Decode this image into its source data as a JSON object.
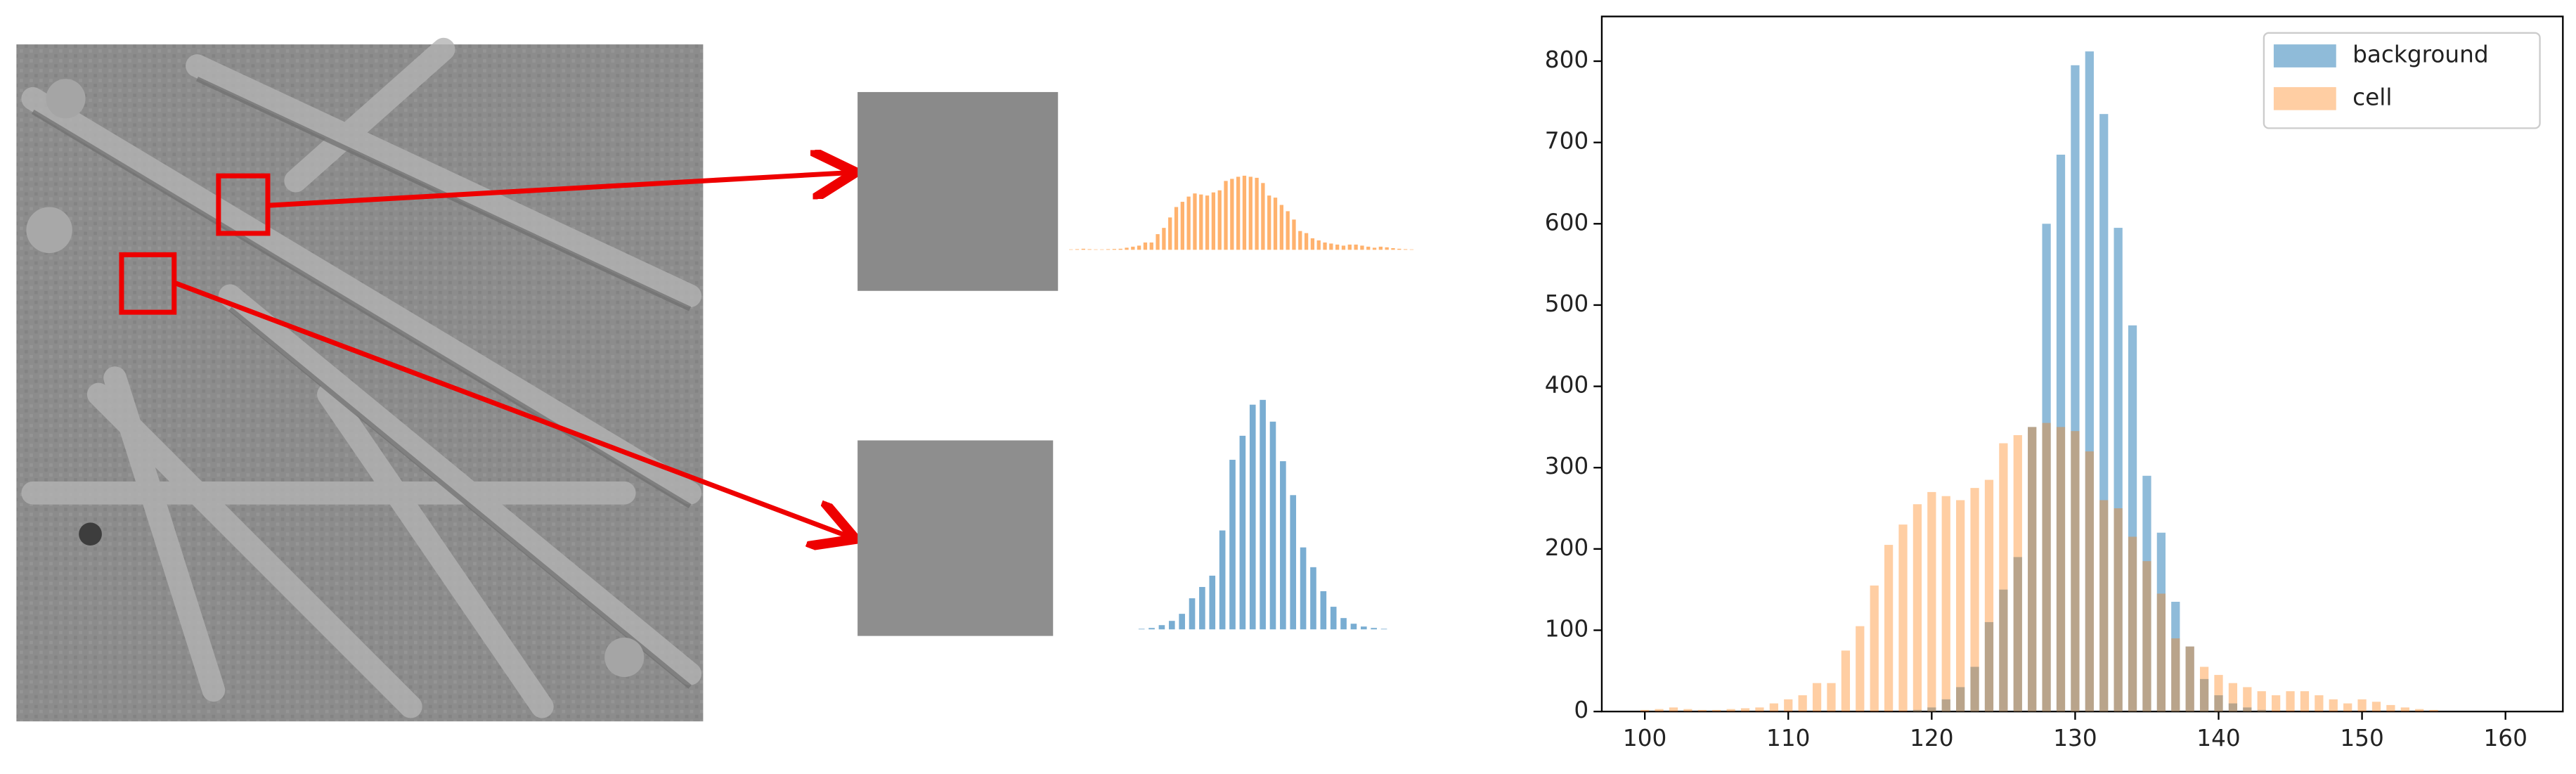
{
  "chart_data": {
    "type": "bar",
    "x": [
      100,
      101,
      102,
      103,
      104,
      105,
      106,
      107,
      108,
      109,
      110,
      111,
      112,
      113,
      114,
      115,
      116,
      117,
      118,
      119,
      120,
      121,
      122,
      123,
      124,
      125,
      126,
      127,
      128,
      129,
      130,
      131,
      132,
      133,
      134,
      135,
      136,
      137,
      138,
      139,
      140,
      141,
      142,
      143,
      144,
      145,
      146,
      147,
      148,
      149,
      150,
      151,
      152,
      153,
      154,
      155,
      156,
      157,
      158,
      159,
      160
    ],
    "series": [
      {
        "name": "background",
        "color": "#1f77b4",
        "values": [
          0,
          0,
          0,
          0,
          0,
          0,
          0,
          0,
          0,
          0,
          0,
          0,
          0,
          0,
          0,
          0,
          0,
          0,
          0,
          2,
          5,
          15,
          30,
          55,
          110,
          150,
          190,
          350,
          600,
          685,
          795,
          812,
          735,
          595,
          475,
          290,
          220,
          135,
          80,
          40,
          20,
          10,
          5,
          2,
          0,
          0,
          0,
          0,
          0,
          0,
          0,
          0,
          0,
          0,
          0,
          0,
          0,
          0,
          0,
          0,
          0
        ]
      },
      {
        "name": "cell",
        "color": "#ff7f0e",
        "values": [
          2,
          3,
          5,
          3,
          2,
          2,
          3,
          4,
          5,
          10,
          15,
          20,
          35,
          35,
          75,
          105,
          155,
          205,
          230,
          255,
          270,
          265,
          260,
          275,
          285,
          330,
          340,
          350,
          355,
          350,
          345,
          320,
          260,
          250,
          215,
          185,
          145,
          90,
          80,
          55,
          45,
          35,
          30,
          25,
          20,
          25,
          25,
          20,
          15,
          10,
          15,
          12,
          8,
          5,
          3,
          2,
          0,
          0,
          0,
          0,
          0
        ]
      }
    ],
    "xlim": [
      97,
      164
    ],
    "ylim": [
      0,
      855
    ],
    "xticks": [
      100,
      110,
      120,
      130,
      140,
      150,
      160
    ],
    "yticks": [
      0,
      100,
      200,
      300,
      400,
      500,
      600,
      700,
      800
    ],
    "legend": "upper right"
  }
}
